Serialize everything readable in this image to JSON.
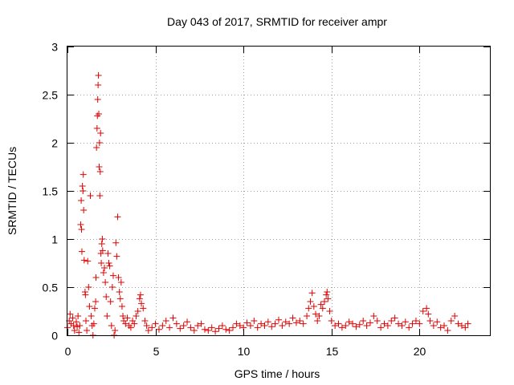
{
  "chart_data": {
    "type": "scatter",
    "title": "Day 043 of 2017, SRMTID for receiver ampr",
    "xlabel": "GPS time / hours",
    "ylabel": "SRMTID / TECUs",
    "xlim": [
      0,
      24
    ],
    "ylim": [
      0,
      3
    ],
    "x_ticks": [
      0,
      5,
      10,
      15,
      20
    ],
    "x_tick_labels": [
      "0",
      "5",
      "10",
      "15",
      "20"
    ],
    "y_ticks": [
      0,
      0.5,
      1,
      1.5,
      2,
      2.5,
      3
    ],
    "y_tick_labels": [
      "0",
      "0.5",
      "1",
      "1.5",
      "2",
      "2.5",
      "3"
    ],
    "grid": true,
    "marker": "+",
    "series": [
      {
        "name": "SRMTID",
        "color": "#e00000",
        "points": [
          [
            0.0,
            0.08
          ],
          [
            0.1,
            0.15
          ],
          [
            0.15,
            0.22
          ],
          [
            0.2,
            0.12
          ],
          [
            0.3,
            0.18
          ],
          [
            0.35,
            0.1
          ],
          [
            0.4,
            0.05
          ],
          [
            0.5,
            0.14
          ],
          [
            0.55,
            0.09
          ],
          [
            0.6,
            0.2
          ],
          [
            0.65,
            0.03
          ],
          [
            0.7,
            0.1
          ],
          [
            0.75,
            1.15
          ],
          [
            0.78,
            1.4
          ],
          [
            0.8,
            1.1
          ],
          [
            0.82,
            0.87
          ],
          [
            0.85,
            1.55
          ],
          [
            0.88,
            1.5
          ],
          [
            0.9,
            1.67
          ],
          [
            0.92,
            1.3
          ],
          [
            0.95,
            0.78
          ],
          [
            1.0,
            0.45
          ],
          [
            1.02,
            0.42
          ],
          [
            1.05,
            0.15
          ],
          [
            1.1,
            0.05
          ],
          [
            1.15,
            0.77
          ],
          [
            1.2,
            0.5
          ],
          [
            1.25,
            0.3
          ],
          [
            1.3,
            1.45
          ],
          [
            1.35,
            0.2
          ],
          [
            1.4,
            0.1
          ],
          [
            1.45,
            0.0
          ],
          [
            1.5,
            0.12
          ],
          [
            1.55,
            0.28
          ],
          [
            1.6,
            0.35
          ],
          [
            1.62,
            0.6
          ],
          [
            1.65,
            1.95
          ],
          [
            1.68,
            2.15
          ],
          [
            1.7,
            2.28
          ],
          [
            1.72,
            2.45
          ],
          [
            1.74,
            2.6
          ],
          [
            1.76,
            2.7
          ],
          [
            1.78,
            2.3
          ],
          [
            1.8,
            1.75
          ],
          [
            1.82,
            2.0
          ],
          [
            1.84,
            1.45
          ],
          [
            1.86,
            1.7
          ],
          [
            1.88,
            2.1
          ],
          [
            1.9,
            0.85
          ],
          [
            1.92,
            0.75
          ],
          [
            1.95,
            0.95
          ],
          [
            1.98,
            1.0
          ],
          [
            2.0,
            0.88
          ],
          [
            2.05,
            0.65
          ],
          [
            2.1,
            0.7
          ],
          [
            2.15,
            0.55
          ],
          [
            2.2,
            0.4
          ],
          [
            2.25,
            0.2
          ],
          [
            2.3,
            0.85
          ],
          [
            2.35,
            0.75
          ],
          [
            2.4,
            0.72
          ],
          [
            2.45,
            0.35
          ],
          [
            2.5,
            0.1
          ],
          [
            2.55,
            0.5
          ],
          [
            2.6,
            0.62
          ],
          [
            2.65,
            0.0
          ],
          [
            2.7,
            0.05
          ],
          [
            2.75,
            0.96
          ],
          [
            2.8,
            0.82
          ],
          [
            2.85,
            1.23
          ],
          [
            2.9,
            0.6
          ],
          [
            2.95,
            0.45
          ],
          [
            3.0,
            0.38
          ],
          [
            3.05,
            0.55
          ],
          [
            3.1,
            0.3
          ],
          [
            3.15,
            0.2
          ],
          [
            3.2,
            0.15
          ],
          [
            3.3,
            0.12
          ],
          [
            3.4,
            0.18
          ],
          [
            3.5,
            0.1
          ],
          [
            3.6,
            0.08
          ],
          [
            3.7,
            0.15
          ],
          [
            3.8,
            0.12
          ],
          [
            3.9,
            0.2
          ],
          [
            4.0,
            0.25
          ],
          [
            4.1,
            0.38
          ],
          [
            4.15,
            0.42
          ],
          [
            4.2,
            0.33
          ],
          [
            4.3,
            0.28
          ],
          [
            4.4,
            0.15
          ],
          [
            4.5,
            0.1
          ],
          [
            4.6,
            0.05
          ],
          [
            4.8,
            0.08
          ],
          [
            5.0,
            0.12
          ],
          [
            5.2,
            0.06
          ],
          [
            5.4,
            0.1
          ],
          [
            5.6,
            0.15
          ],
          [
            5.8,
            0.08
          ],
          [
            6.0,
            0.18
          ],
          [
            6.2,
            0.12
          ],
          [
            6.4,
            0.07
          ],
          [
            6.6,
            0.1
          ],
          [
            6.8,
            0.14
          ],
          [
            7.0,
            0.08
          ],
          [
            7.2,
            0.05
          ],
          [
            7.4,
            0.1
          ],
          [
            7.6,
            0.12
          ],
          [
            7.8,
            0.06
          ],
          [
            8.0,
            0.05
          ],
          [
            8.2,
            0.08
          ],
          [
            8.4,
            0.04
          ],
          [
            8.6,
            0.07
          ],
          [
            8.8,
            0.1
          ],
          [
            9.0,
            0.06
          ],
          [
            9.2,
            0.05
          ],
          [
            9.4,
            0.08
          ],
          [
            9.6,
            0.12
          ],
          [
            9.8,
            0.1
          ],
          [
            10.0,
            0.08
          ],
          [
            10.2,
            0.13
          ],
          [
            10.4,
            0.1
          ],
          [
            10.6,
            0.15
          ],
          [
            10.8,
            0.08
          ],
          [
            11.0,
            0.12
          ],
          [
            11.2,
            0.1
          ],
          [
            11.4,
            0.14
          ],
          [
            11.6,
            0.09
          ],
          [
            11.8,
            0.12
          ],
          [
            12.0,
            0.16
          ],
          [
            12.2,
            0.1
          ],
          [
            12.4,
            0.14
          ],
          [
            12.6,
            0.12
          ],
          [
            12.8,
            0.18
          ],
          [
            13.0,
            0.13
          ],
          [
            13.2,
            0.15
          ],
          [
            13.4,
            0.12
          ],
          [
            13.6,
            0.2
          ],
          [
            13.7,
            0.28
          ],
          [
            13.8,
            0.35
          ],
          [
            13.9,
            0.44
          ],
          [
            14.0,
            0.3
          ],
          [
            14.1,
            0.22
          ],
          [
            14.2,
            0.15
          ],
          [
            14.3,
            0.2
          ],
          [
            14.4,
            0.32
          ],
          [
            14.5,
            0.28
          ],
          [
            14.6,
            0.35
          ],
          [
            14.7,
            0.42
          ],
          [
            14.75,
            0.45
          ],
          [
            14.8,
            0.38
          ],
          [
            14.9,
            0.25
          ],
          [
            15.0,
            0.15
          ],
          [
            15.2,
            0.1
          ],
          [
            15.4,
            0.12
          ],
          [
            15.6,
            0.08
          ],
          [
            15.8,
            0.1
          ],
          [
            16.0,
            0.14
          ],
          [
            16.2,
            0.12
          ],
          [
            16.4,
            0.09
          ],
          [
            16.6,
            0.11
          ],
          [
            16.8,
            0.15
          ],
          [
            17.0,
            0.1
          ],
          [
            17.2,
            0.13
          ],
          [
            17.4,
            0.2
          ],
          [
            17.6,
            0.15
          ],
          [
            17.8,
            0.08
          ],
          [
            18.0,
            0.12
          ],
          [
            18.2,
            0.1
          ],
          [
            18.4,
            0.15
          ],
          [
            18.6,
            0.18
          ],
          [
            18.8,
            0.12
          ],
          [
            19.0,
            0.1
          ],
          [
            19.2,
            0.14
          ],
          [
            19.4,
            0.08
          ],
          [
            19.6,
            0.12
          ],
          [
            19.8,
            0.15
          ],
          [
            20.0,
            0.12
          ],
          [
            20.2,
            0.25
          ],
          [
            20.4,
            0.28
          ],
          [
            20.5,
            0.22
          ],
          [
            20.6,
            0.15
          ],
          [
            20.8,
            0.1
          ],
          [
            21.0,
            0.14
          ],
          [
            21.2,
            0.08
          ],
          [
            21.4,
            0.1
          ],
          [
            21.6,
            0.05
          ],
          [
            21.8,
            0.15
          ],
          [
            22.0,
            0.2
          ],
          [
            22.2,
            0.12
          ],
          [
            22.4,
            0.1
          ],
          [
            22.6,
            0.08
          ],
          [
            22.75,
            0.12
          ]
        ]
      }
    ]
  }
}
